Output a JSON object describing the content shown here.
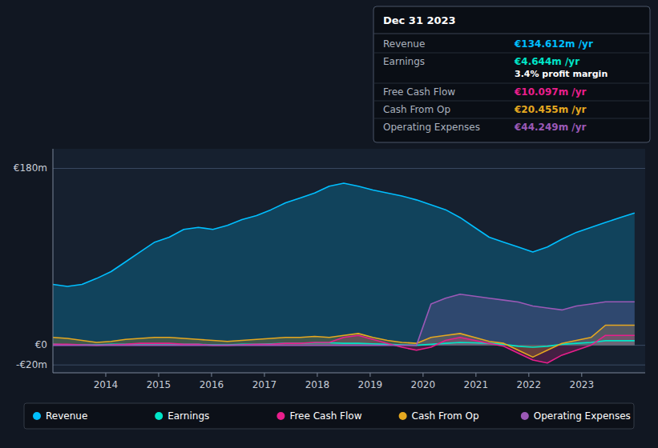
{
  "chart_data": {
    "type": "area",
    "x": [
      2013,
      2013.275,
      2013.55,
      2013.825,
      2014.1,
      2014.375,
      2014.65,
      2014.925,
      2015.2,
      2015.475,
      2015.75,
      2016.025,
      2016.3,
      2016.575,
      2016.85,
      2017.125,
      2017.4,
      2017.675,
      2017.95,
      2018.225,
      2018.5,
      2018.775,
      2019.05,
      2019.325,
      2019.6,
      2019.875,
      2020.15,
      2020.425,
      2020.7,
      2020.975,
      2021.25,
      2021.525,
      2021.8,
      2022.075,
      2022.35,
      2022.625,
      2022.9,
      2023.175,
      2023.45,
      2023.725,
      2024
    ],
    "series": [
      {
        "name": "Revenue",
        "color": "#00bfff",
        "values": [
          62,
          60,
          62,
          68,
          75,
          85,
          95,
          105,
          110,
          118,
          120,
          118,
          122,
          128,
          132,
          138,
          145,
          150,
          155,
          162,
          165,
          162,
          158,
          155,
          152,
          148,
          143,
          138,
          130,
          120,
          110,
          105,
          100,
          95,
          100,
          108,
          115,
          120,
          125,
          130,
          134.6
        ]
      },
      {
        "name": "Earnings",
        "color": "#00e5c8",
        "values": [
          1,
          0.5,
          0.5,
          0.5,
          1,
          1,
          1.5,
          1.5,
          1.5,
          1,
          1,
          0.5,
          0.5,
          1,
          1,
          1.5,
          2,
          2,
          2.5,
          2.5,
          2,
          2,
          1.5,
          1,
          0.5,
          0,
          1,
          2,
          3,
          2.5,
          2,
          1,
          -1,
          -2,
          -1,
          1,
          2,
          3,
          4.644,
          4.644,
          4.644
        ]
      },
      {
        "name": "Free Cash Flow",
        "color": "#e91e8c",
        "values": [
          1,
          1,
          0.5,
          0,
          0.5,
          1,
          2,
          2,
          2,
          1,
          1,
          0,
          0,
          0.5,
          1,
          1,
          2,
          2,
          3,
          3,
          8,
          10,
          6,
          2,
          -2,
          -5,
          -2,
          5,
          8,
          5,
          2,
          -1,
          -8,
          -15,
          -18,
          -10,
          -5,
          0,
          10.097,
          10.097,
          10.097
        ]
      },
      {
        "name": "Cash From Op",
        "color": "#e5a820",
        "values": [
          8,
          7,
          5,
          3,
          4,
          6,
          7,
          8,
          8,
          7,
          6,
          5,
          4,
          5,
          6,
          7,
          8,
          8,
          9,
          8,
          10,
          12,
          8,
          5,
          3,
          2,
          8,
          10,
          12,
          8,
          4,
          2,
          -5,
          -12,
          -5,
          2,
          5,
          8,
          20.46,
          20.46,
          20.46
        ]
      },
      {
        "name": "Operating Expenses",
        "color": "#9b59b6",
        "values": [
          0,
          0,
          0,
          0,
          0,
          0,
          0,
          0,
          0,
          0,
          0,
          0,
          0,
          0,
          0,
          0,
          0,
          0,
          0,
          0,
          0,
          0,
          0,
          0,
          0,
          0,
          42,
          48,
          52,
          50,
          48,
          46,
          44,
          40,
          38,
          36,
          40,
          42,
          44.25,
          44.25,
          44.25
        ]
      }
    ],
    "xlim": [
      2013,
      2024.2
    ],
    "xticks": [
      2014,
      2015,
      2016,
      2017,
      2018,
      2019,
      2020,
      2021,
      2022,
      2023
    ],
    "ylim": [
      -28,
      200
    ],
    "yticks": [
      {
        "value": -20,
        "label": "-€20m"
      },
      {
        "value": 0,
        "label": "€0"
      },
      {
        "value": 180,
        "label": "€180m"
      }
    ],
    "grid": true,
    "legend": "bottom",
    "annotations": {
      "title": "Dec 31 2023",
      "rows": [
        {
          "label": "Revenue",
          "value": "€134.612m /yr",
          "color": "#00bfff"
        },
        {
          "label": "Earnings",
          "value": "€4.644m /yr",
          "color": "#00e5c8",
          "extra": "3.4% profit margin"
        },
        {
          "label": "Free Cash Flow",
          "value": "€10.097m /yr",
          "color": "#e91e8c"
        },
        {
          "label": "Cash From Op",
          "value": "€20.455m /yr",
          "color": "#e5a820"
        },
        {
          "label": "Operating Expenses",
          "value": "€44.249m /yr",
          "color": "#9b59b6"
        }
      ]
    }
  }
}
